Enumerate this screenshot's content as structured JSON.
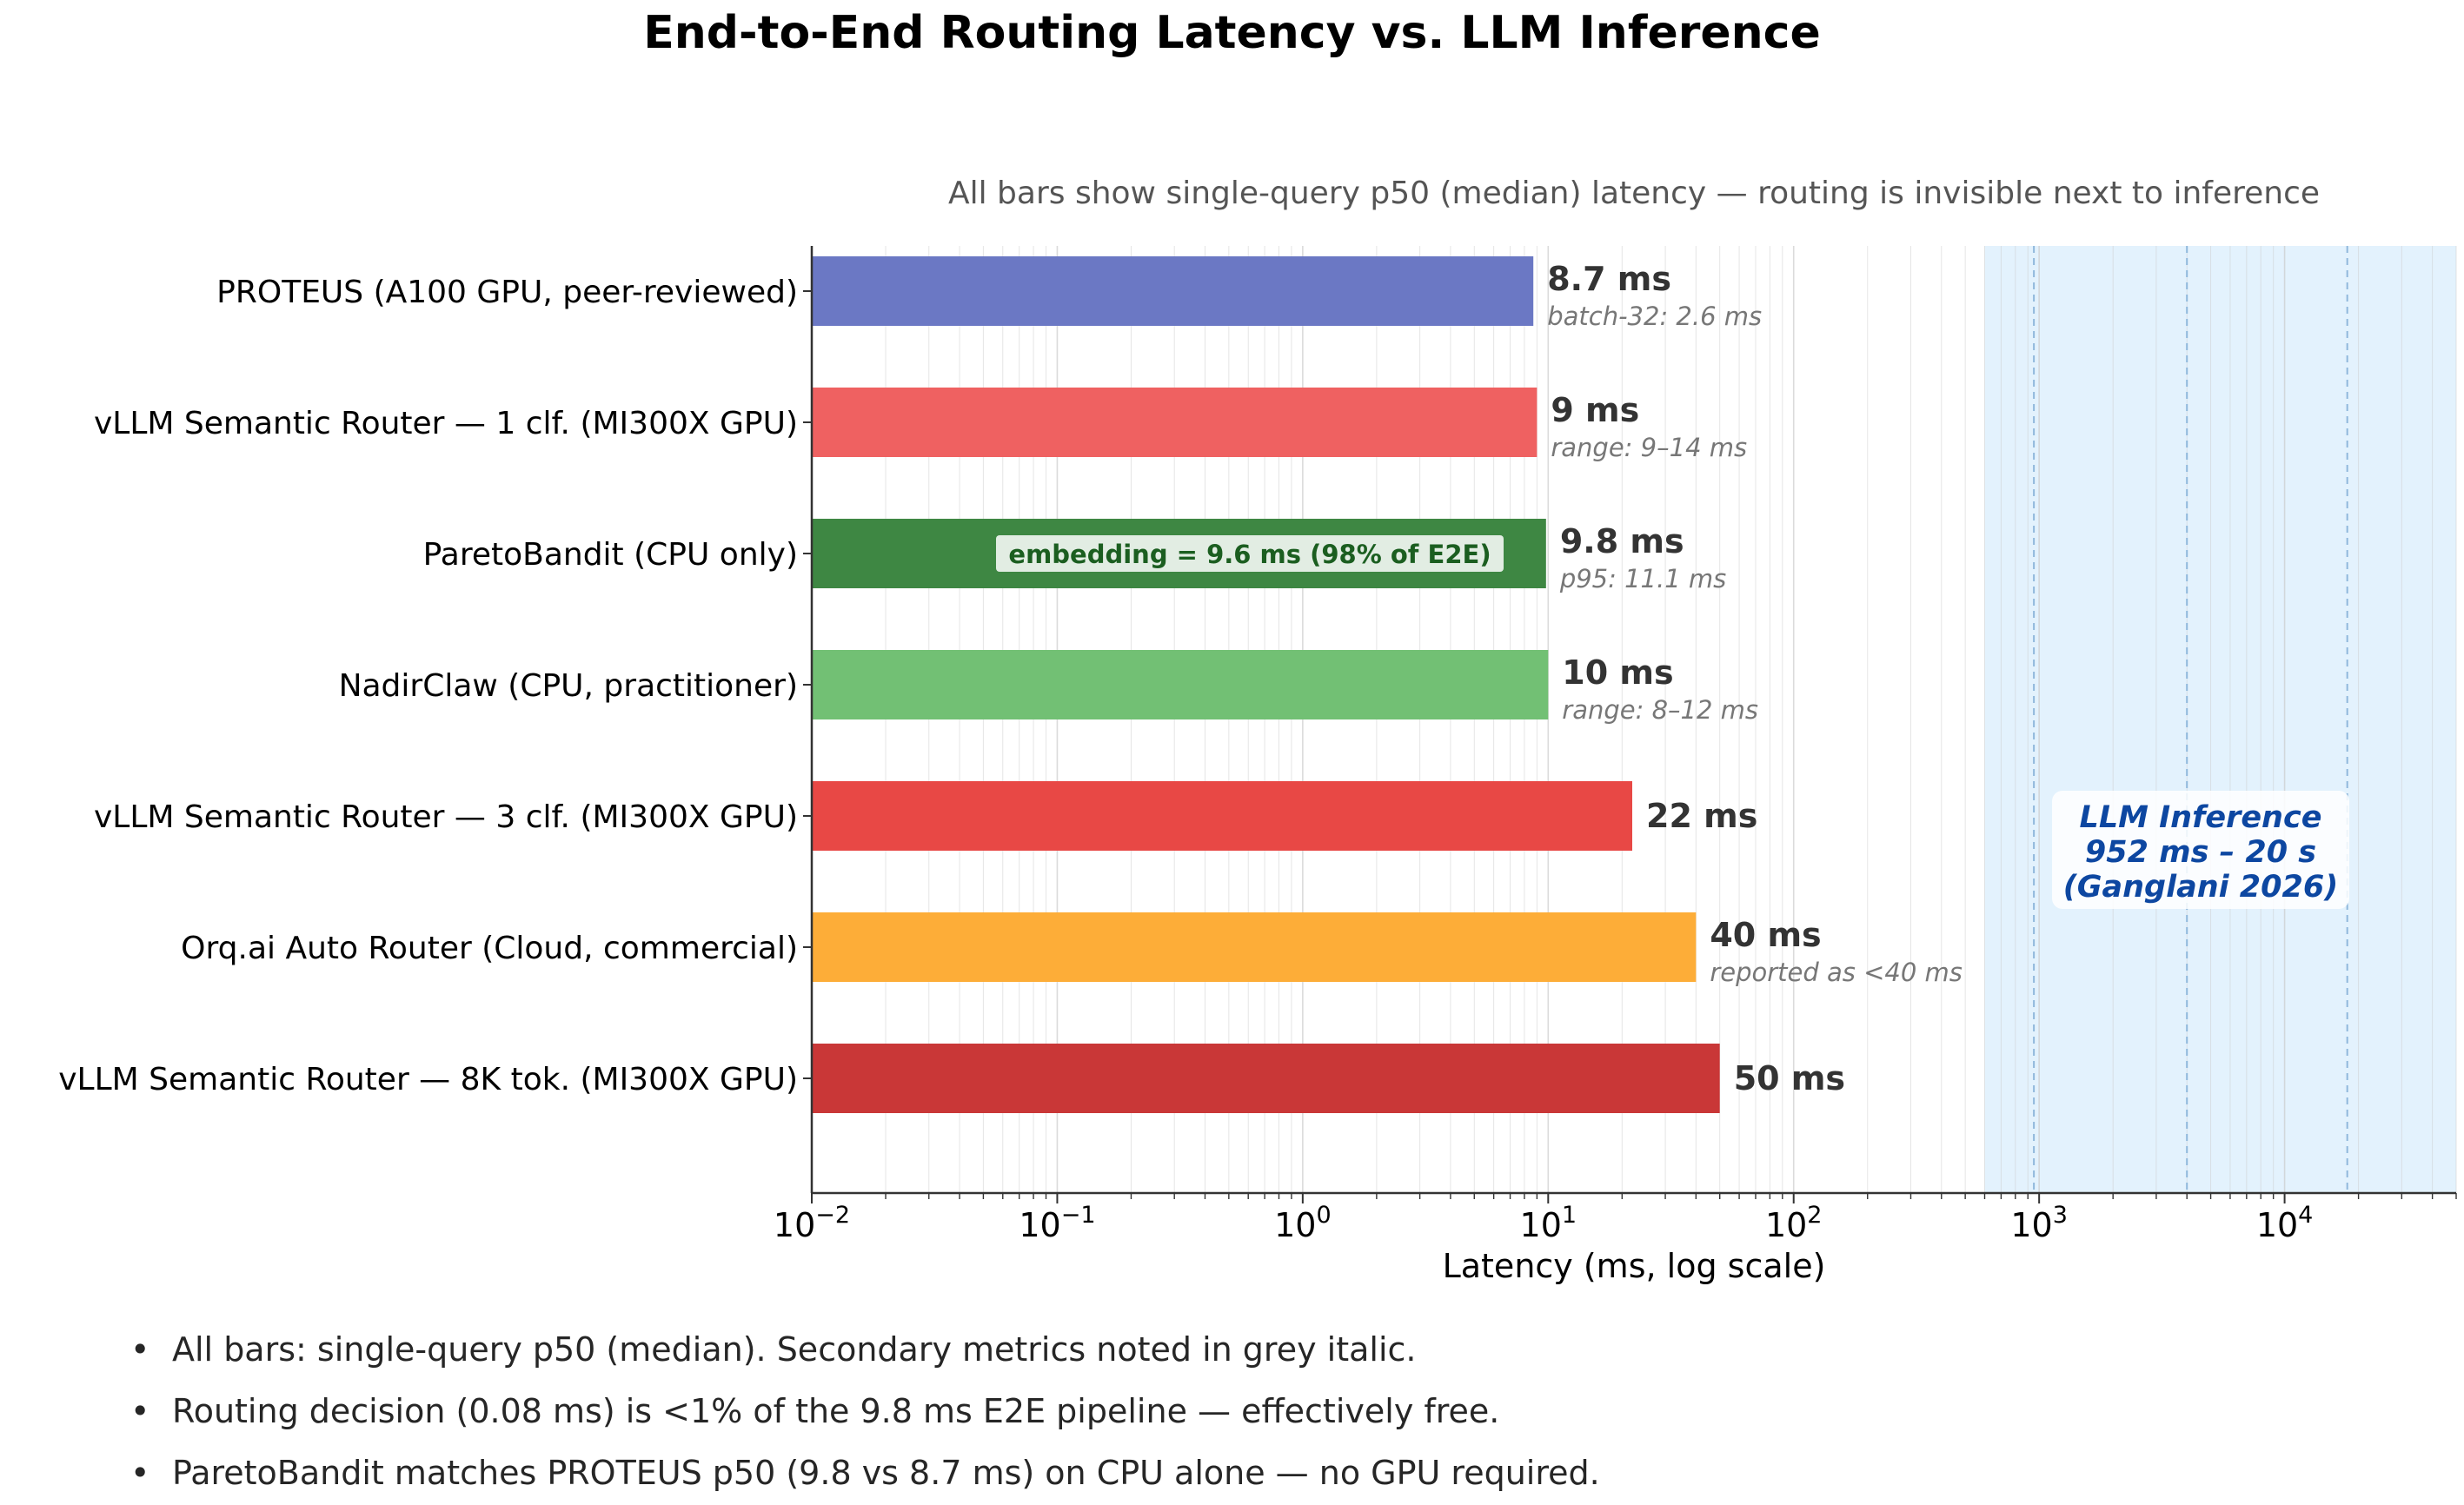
{
  "chart_data": {
    "type": "bar",
    "orientation": "horizontal",
    "title": "End-to-End Routing Latency vs. LLM Inference",
    "subtitle": "All bars show single-query p50 (median) latency — routing is invisible next to inference",
    "xlabel": "Latency (ms, log scale)",
    "xscale": "log",
    "xlim": [
      0.01,
      50000
    ],
    "x_ticks": [
      {
        "value": 0.01,
        "base": "10",
        "exp": "−2"
      },
      {
        "value": 0.1,
        "base": "10",
        "exp": "−1"
      },
      {
        "value": 1,
        "base": "10",
        "exp": "0"
      },
      {
        "value": 10,
        "base": "10",
        "exp": "1"
      },
      {
        "value": 100,
        "base": "10",
        "exp": "2"
      },
      {
        "value": 1000,
        "base": "10",
        "exp": "3"
      },
      {
        "value": 10000,
        "base": "10",
        "exp": "4"
      }
    ],
    "grid": true,
    "bars": [
      {
        "label": "PROTEUS  (A100 GPU, peer-reviewed)",
        "value": 8.7,
        "value_label": "8.7 ms",
        "note": "batch-32: 2.6 ms",
        "color": "#6b78c4"
      },
      {
        "label": "vLLM Semantic Router — 1 clf.  (MI300X GPU)",
        "value": 9,
        "value_label": "9 ms",
        "note": "range: 9–14 ms",
        "color": "#ef6161"
      },
      {
        "label": "ParetoBandit  (CPU only)",
        "value": 9.8,
        "value_label": "9.8 ms",
        "note": "p95: 11.1 ms",
        "color": "#3e8743",
        "inner_label": "embedding = 9.6 ms (98% of E2E)"
      },
      {
        "label": "NadirClaw  (CPU, practitioner)",
        "value": 10,
        "value_label": "10 ms",
        "note": "range: 8–12 ms",
        "color": "#72c074"
      },
      {
        "label": "vLLM Semantic Router — 3 clf.  (MI300X GPU)",
        "value": 22,
        "value_label": "22 ms",
        "note": "",
        "color": "#e84845"
      },
      {
        "label": "Orq.ai Auto Router  (Cloud, commercial)",
        "value": 40,
        "value_label": "40 ms",
        "note": "reported as <40 ms",
        "color": "#fdad38"
      },
      {
        "label": "vLLM Semantic Router — 8K tok.  (MI300X GPU)",
        "value": 50,
        "value_label": "50 ms",
        "note": "",
        "color": "#c93737"
      }
    ],
    "inference_band": {
      "range_ms": [
        600,
        50000
      ],
      "reference_lines_ms": [
        952,
        4000,
        18000
      ],
      "label_lines": [
        "LLM Inference",
        "952 ms – 20 s",
        "(Ganglani 2026)"
      ],
      "fill_color": "#e3f2fd",
      "line_color": "#90b8dc",
      "text_color": "#0d47a1"
    }
  },
  "notes": [
    "All bars: single-query p50 (median). Secondary metrics noted in grey italic.",
    "Routing decision (0.08 ms) is <1% of the 9.8 ms E2E pipeline — effectively free.",
    "ParetoBandit matches PROTEUS p50 (9.8 vs 8.7 ms) on CPU alone — no GPU required."
  ]
}
